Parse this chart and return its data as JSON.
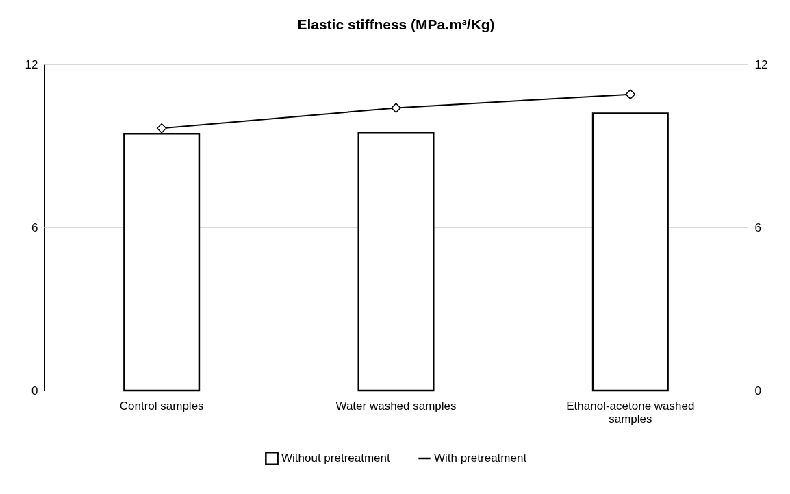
{
  "chart_data": {
    "type": "bar",
    "title": "Elastic stiffness (MPa.m³/Kg)",
    "categories": [
      "Control samples",
      "Water washed samples",
      "Ethanol-acetone washed samples"
    ],
    "series": [
      {
        "name": "Without pretreatment",
        "color": "#ffffff",
        "values": [
          9.45,
          9.5,
          10.2
        ]
      },
      {
        "name": "With pretreatment",
        "type": "line",
        "axis": "y2",
        "color": "#000000",
        "values": [
          9.65,
          10.4,
          10.9
        ]
      }
    ],
    "ylim": [
      0,
      12
    ],
    "yticks": [
      0,
      6,
      12
    ],
    "y2lim": [
      0,
      12
    ],
    "y2ticks": [
      0,
      6,
      12
    ],
    "grid": "y",
    "legend": "bottom",
    "marker": "diamond",
    "line_style": "solid"
  }
}
